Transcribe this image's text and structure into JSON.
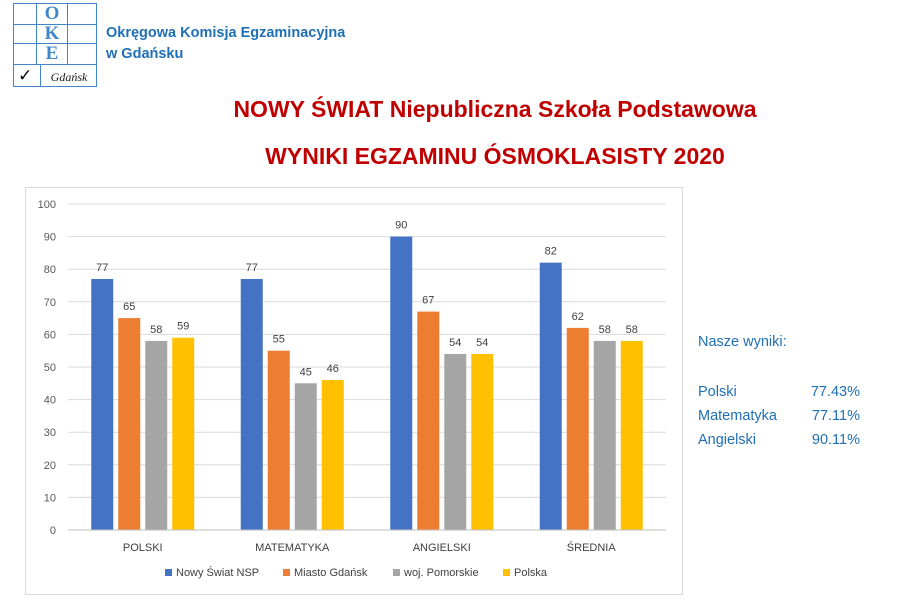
{
  "logo": {
    "letters": [
      "O",
      "K",
      "E"
    ],
    "city": "Gdańsk",
    "check": "✓"
  },
  "org": {
    "line1": "Okręgowa Komisja Egzaminacyjna",
    "line2": "w Gdańsku"
  },
  "title": {
    "line1": "NOWY ŚWIAT Niepubliczna Szkoła Podstawowa",
    "line2": "WYNIKI EGZAMINU ÓSMOKLASISTY 2020"
  },
  "colors": {
    "title": "#c00000",
    "accent": "#1f6fb5"
  },
  "chart_data": {
    "type": "bar",
    "categories": [
      "POLSKI",
      "MATEMATYKA",
      "ANGIELSKI",
      "ŚREDNIA"
    ],
    "series": [
      {
        "name": "Nowy Świat NSP",
        "color": "#4472c4",
        "values": [
          77,
          77,
          90,
          82
        ]
      },
      {
        "name": "Miasto Gdańsk",
        "color": "#ed7d31",
        "values": [
          65,
          55,
          67,
          62
        ]
      },
      {
        "name": "woj. Pomorskie",
        "color": "#a5a5a5",
        "values": [
          58,
          45,
          54,
          58
        ]
      },
      {
        "name": "Polska",
        "color": "#ffc000",
        "values": [
          59,
          46,
          54,
          58
        ]
      }
    ],
    "ylim": [
      0,
      100
    ],
    "yticks": [
      0,
      10,
      20,
      30,
      40,
      50,
      60,
      70,
      80,
      90,
      100
    ],
    "grid": true,
    "legend_position": "bottom"
  },
  "results": {
    "heading": "Nasze wyniki:",
    "rows": [
      {
        "label": "Polski",
        "value": "77.43%"
      },
      {
        "label": "Matematyka",
        "value": "77.11%"
      },
      {
        "label": "Angielski",
        "value": "90.11%"
      }
    ]
  }
}
